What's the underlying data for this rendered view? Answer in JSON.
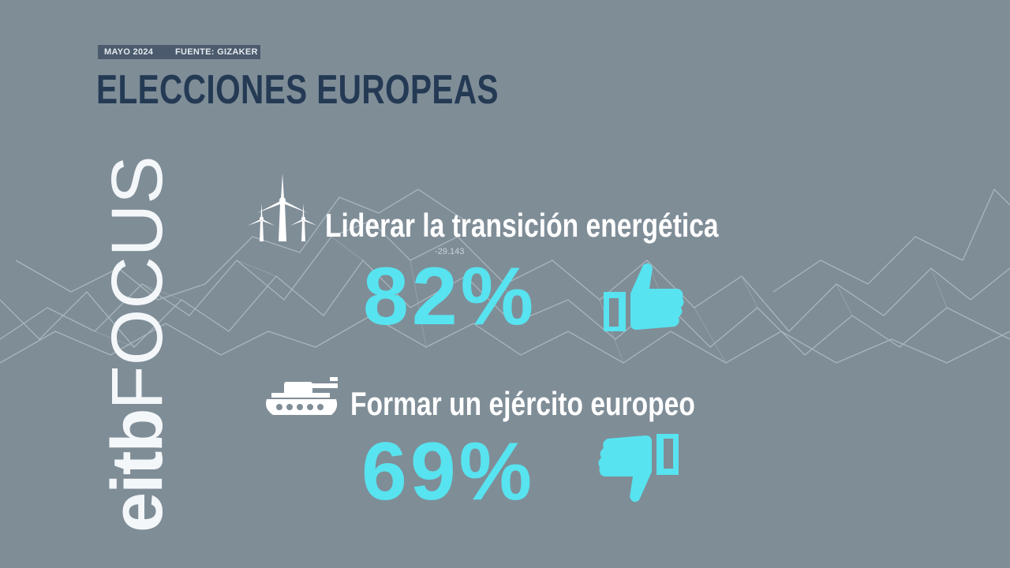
{
  "header": {
    "date": "MAYO 2024",
    "source": "FUENTE: GIZAKER",
    "title": "ELECCIONES EUROPEAS"
  },
  "brand": {
    "part1": "eitb",
    "part2": "FOCUS"
  },
  "background_label": "-29.143",
  "items": [
    {
      "label": "Liderar la transición energética",
      "percent": "82%",
      "icon": "wind-turbines-icon",
      "verdict": "thumbs-up-icon"
    },
    {
      "label": "Formar un ejército europeo",
      "percent": "69%",
      "icon": "tank-icon",
      "verdict": "thumbs-down-icon"
    }
  ],
  "colors": {
    "background": "#7f8d97",
    "accent": "#57e3ef",
    "title": "#243a54",
    "tag_bg": "#4b5a6c",
    "text": "#ffffff"
  }
}
